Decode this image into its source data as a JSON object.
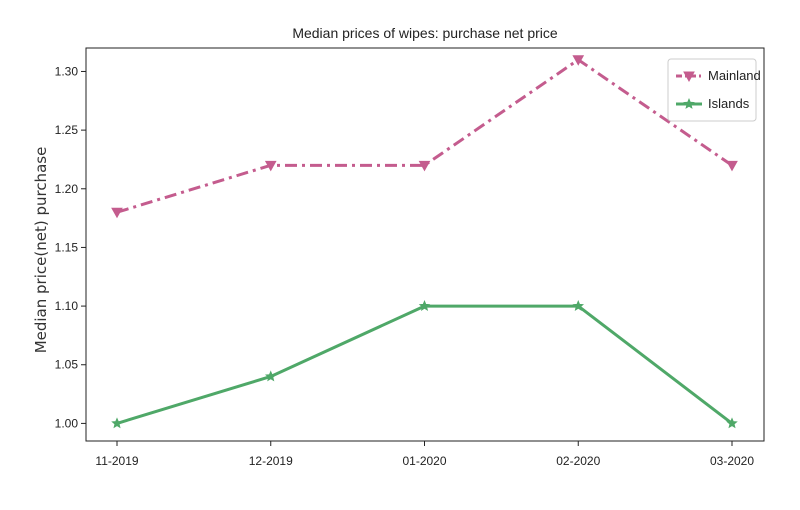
{
  "chart_data": {
    "type": "line",
    "title": "Median prices of wipes: purchase net price",
    "xlabel": "",
    "ylabel": "Median price(net) purchase",
    "categories": [
      "11-2019",
      "12-2019",
      "01-2020",
      "02-2020",
      "03-2020"
    ],
    "ylim": [
      0.985,
      1.32
    ],
    "yticks": [
      "1.00",
      "1.05",
      "1.10",
      "1.15",
      "1.20",
      "1.25",
      "1.30"
    ],
    "grid": false,
    "legend_position": "top-right",
    "series": [
      {
        "name": "Mainland",
        "values": [
          1.18,
          1.22,
          1.22,
          1.31,
          1.22
        ],
        "color": "#c45c8e",
        "linestyle": "dashdot",
        "marker": "triangle-down"
      },
      {
        "name": "Islands",
        "values": [
          1.0,
          1.04,
          1.1,
          1.1,
          1.0
        ],
        "color": "#4fa868",
        "linestyle": "solid",
        "marker": "star"
      }
    ]
  }
}
